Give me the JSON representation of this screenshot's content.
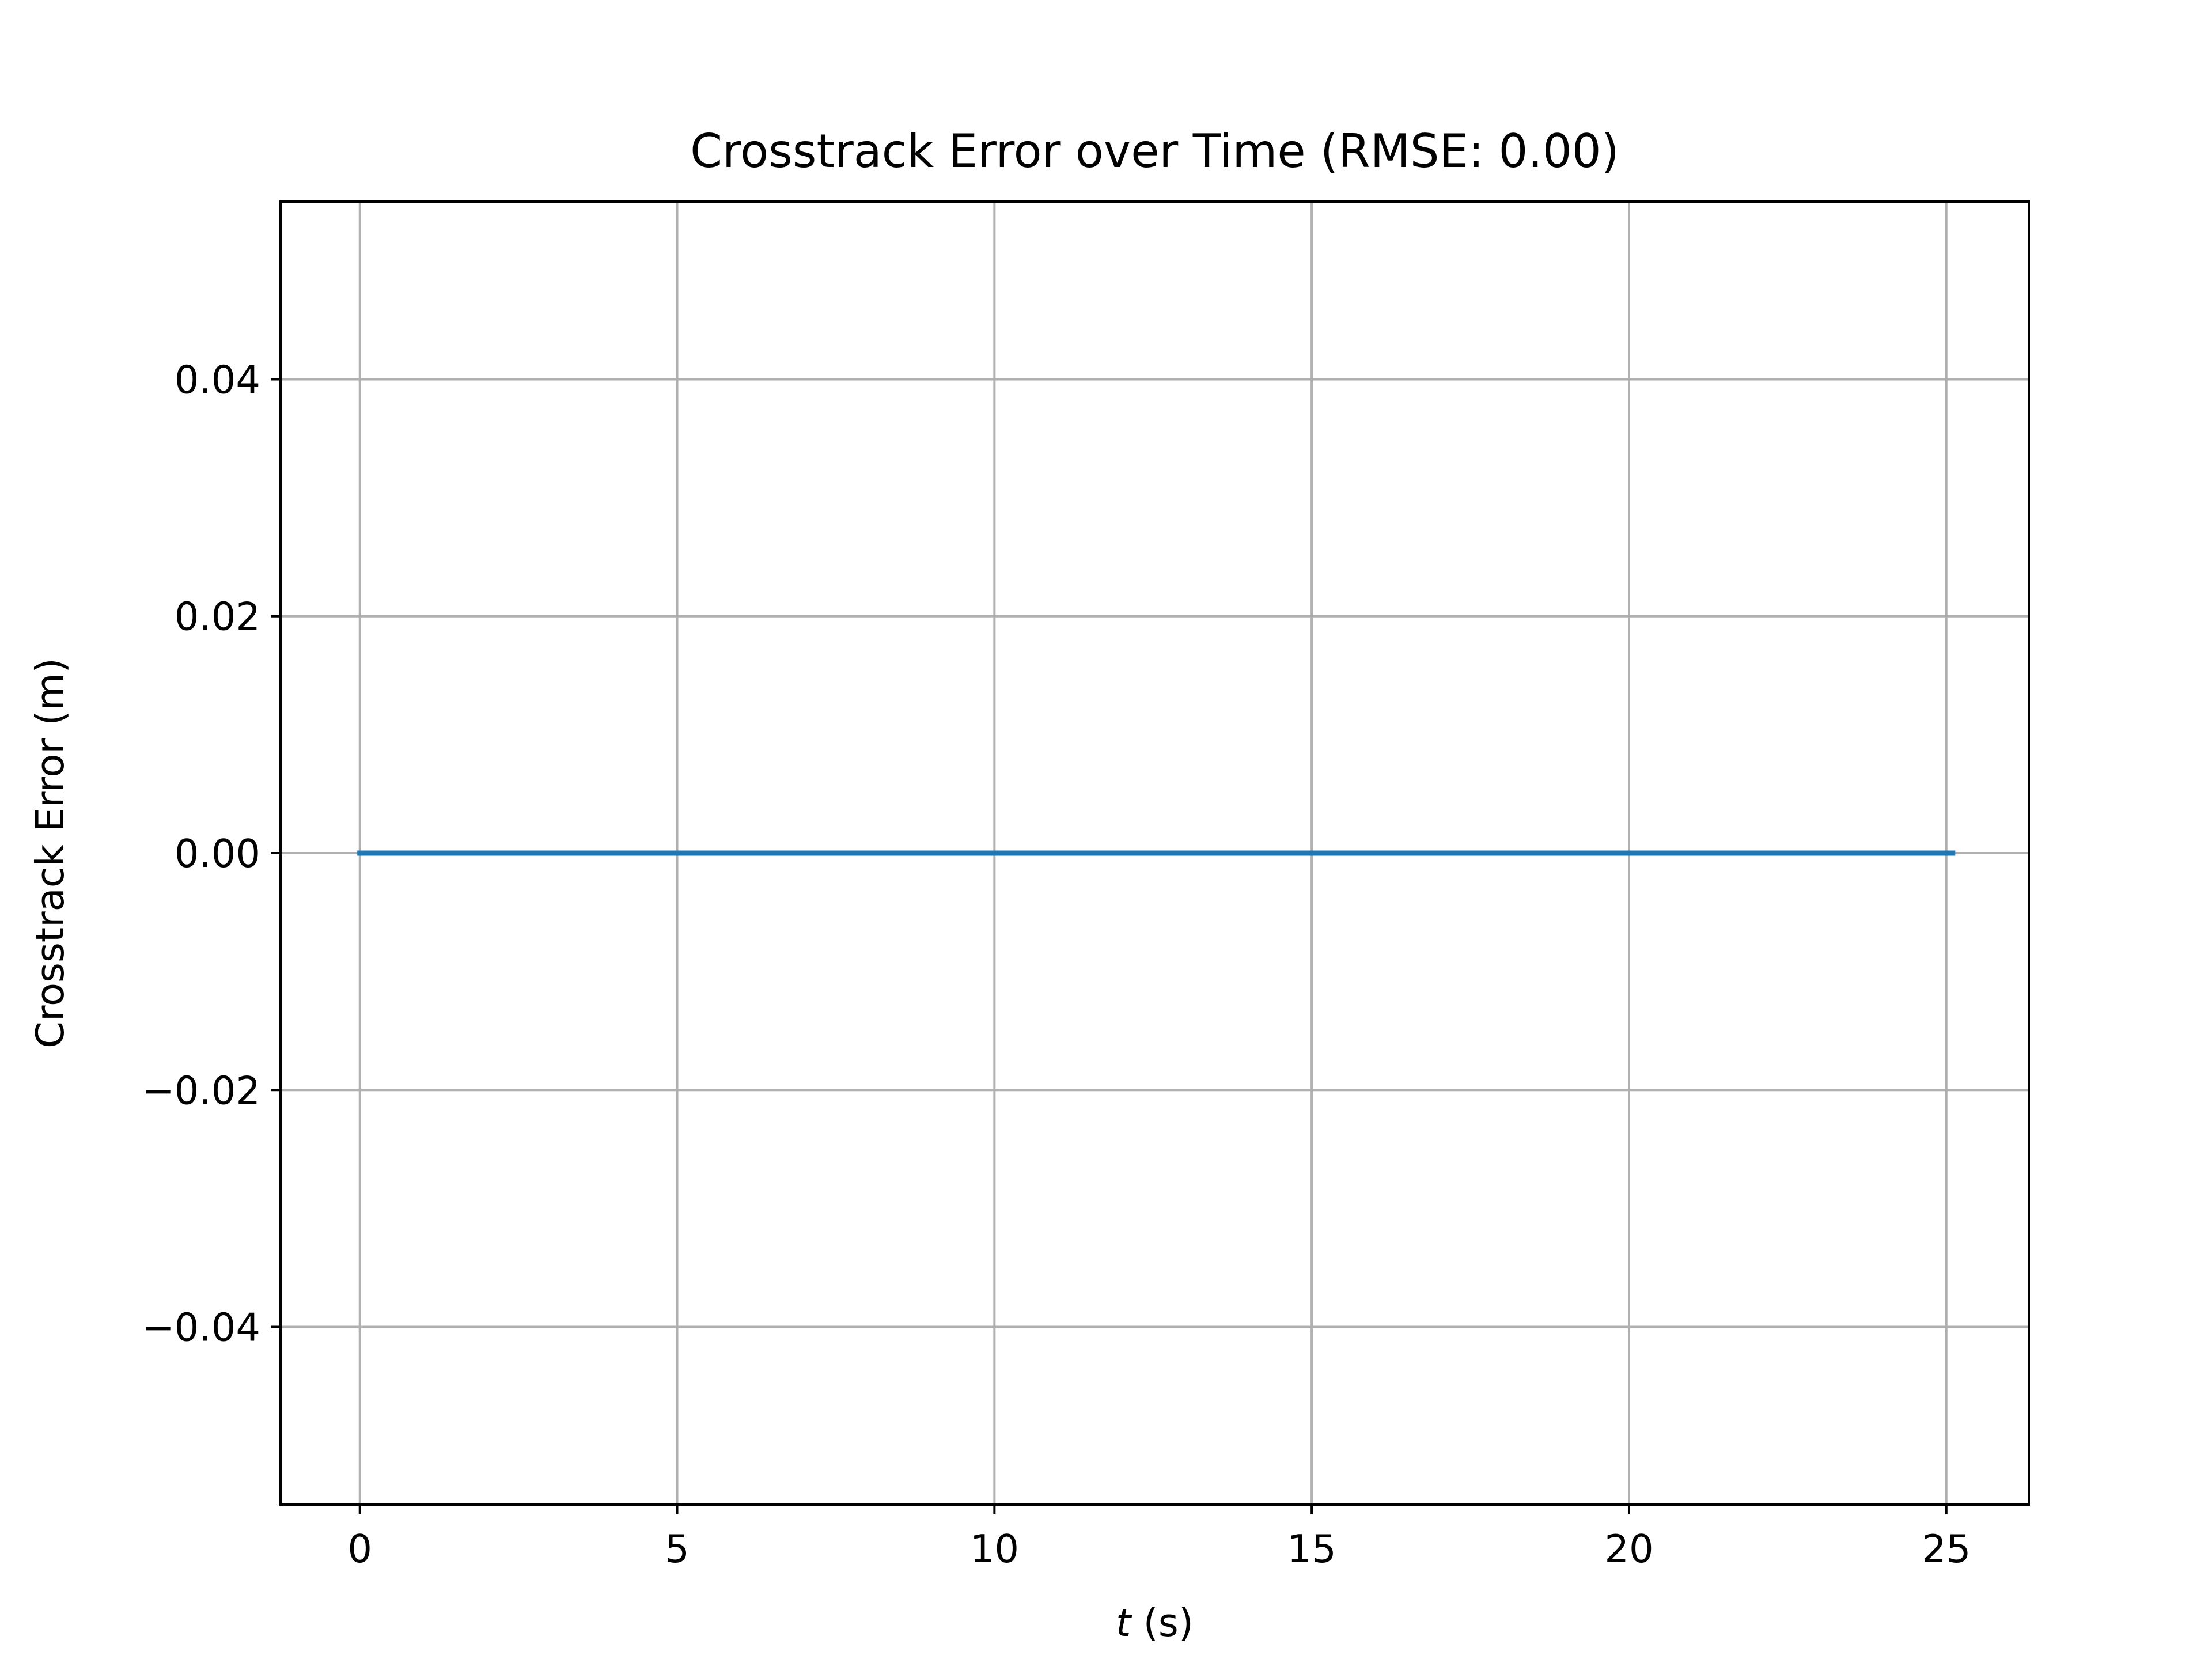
{
  "chart_data": {
    "type": "line",
    "title": "Crosstrack Error over Time (RMSE: 0.00)",
    "xlabel_italic": "t",
    "xlabel_rest": " (s)",
    "ylabel": "Crosstrack Error (m)",
    "xlim": [
      -1.25,
      26.3
    ],
    "ylim": [
      -0.055,
      0.055
    ],
    "xticks": [
      0,
      5,
      10,
      15,
      20,
      25
    ],
    "xtick_labels": [
      "0",
      "5",
      "10",
      "15",
      "20",
      "25"
    ],
    "yticks": [
      0.04,
      0.02,
      0.0,
      -0.02,
      -0.04
    ],
    "ytick_labels": [
      "0.04",
      "0.02",
      "0.00",
      "−0.02",
      "−0.04"
    ],
    "grid": true,
    "series": [
      {
        "color": "#1f77b4",
        "x": [
          0,
          25.1
        ],
        "y": [
          0.0,
          0.0
        ]
      }
    ]
  }
}
